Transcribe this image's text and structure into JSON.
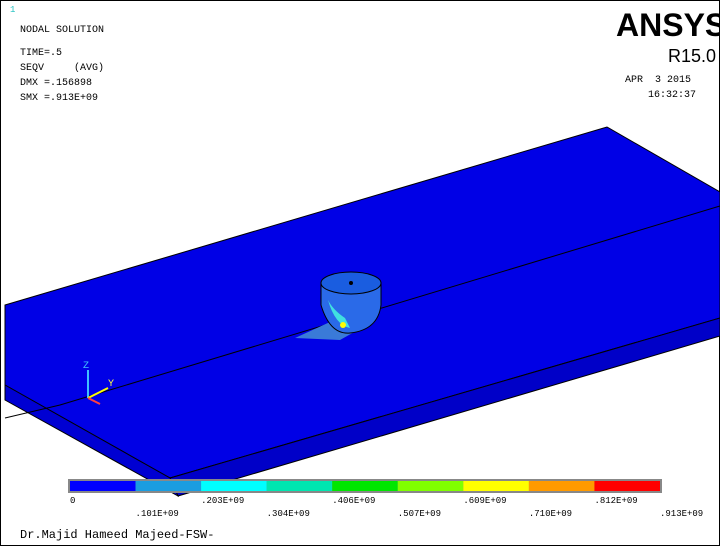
{
  "window_number": "1",
  "header": {
    "lines": [
      "NODAL SOLUTION",
      "TIME=.5",
      "SEQV     (AVG)",
      "DMX =.156898",
      "SMX =.913E+09"
    ]
  },
  "brand": {
    "name": "ANSYS",
    "version": "R15.0",
    "date": "APR  3 2015",
    "time": "16:32:37"
  },
  "triad": {
    "z": "Z",
    "y": "Y"
  },
  "legend": {
    "labels": [
      "0",
      ".101E+09",
      ".203E+09",
      ".304E+09",
      ".406E+09",
      ".507E+09",
      ".609E+09",
      ".710E+09",
      ".812E+09",
      ".913E+09"
    ],
    "colors": [
      "#0000ff",
      "#1a9de0",
      "#00ffff",
      "#00e6b0",
      "#00e600",
      "#80ff00",
      "#ffff00",
      "#ff9a00",
      "#ff0000"
    ]
  },
  "footer": "Dr.Majid Hameed Majeed-FSW-"
}
